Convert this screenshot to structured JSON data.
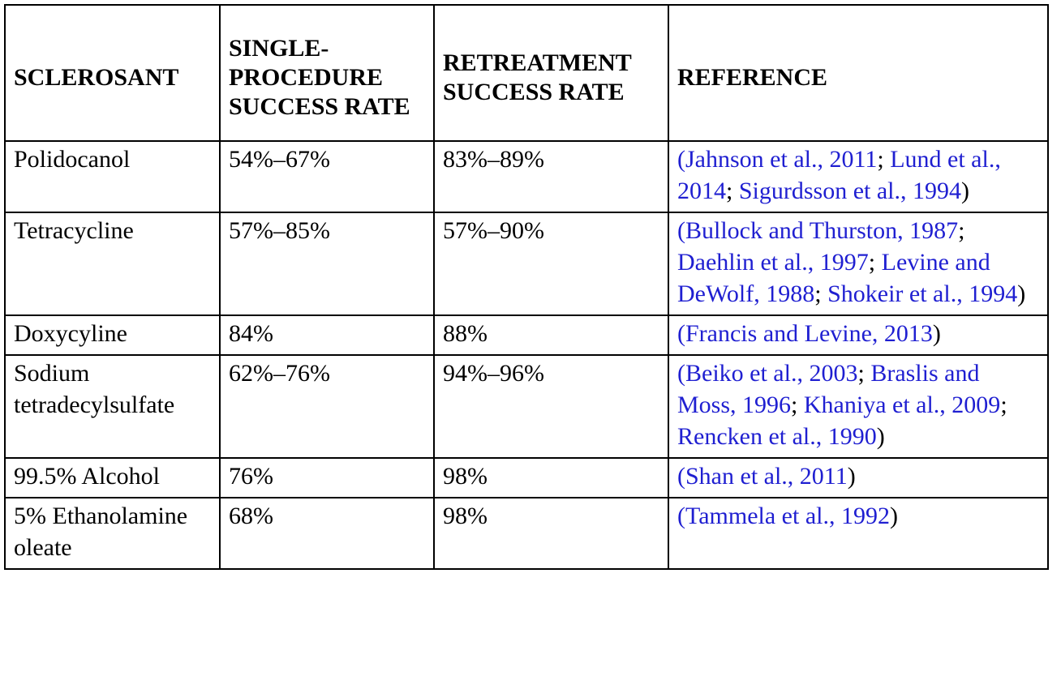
{
  "table": {
    "headers": [
      "SCLEROSANT",
      "SINGLE-PROCEDURE SUCCESS RATE",
      "RETREATMENT SUCCESS RATE",
      "REFERENCE"
    ],
    "rows": [
      {
        "sclerosant": "Polidocanol",
        "single": "54%–67%",
        "retreatment": "83%–89%",
        "references": [
          "Jahnson et al., 2011",
          "Lund et al., 2014",
          "Sigurdsson et al., 1994"
        ]
      },
      {
        "sclerosant": "Tetracycline",
        "single": "57%–85%",
        "retreatment": "57%–90%",
        "references": [
          "Bullock and Thurston, 1987",
          "Daehlin et al., 1997",
          "Levine and DeWolf, 1988",
          "Shokeir et al., 1994"
        ]
      },
      {
        "sclerosant": "Doxycyline",
        "single": "84%",
        "retreatment": "88%",
        "references": [
          "Francis and Levine, 2013"
        ]
      },
      {
        "sclerosant": "Sodium tetradecylsulfate",
        "single": "62%–76%",
        "retreatment": "94%–96%",
        "references": [
          "Beiko et al., 2003",
          "Braslis and Moss, 1996",
          "Khaniya et al., 2009",
          "Rencken et al., 1990"
        ]
      },
      {
        "sclerosant": "99.5% Alcohol",
        "single": "76%",
        "retreatment": "98%",
        "references": [
          "Shan et al., 2011"
        ]
      },
      {
        "sclerosant": "5% Ethanolamine oleate",
        "single": "68%",
        "retreatment": "98%",
        "references": [
          "Tammela et al., 1992"
        ]
      }
    ]
  },
  "punctuation": {
    "open": "(",
    "close": ")",
    "sep": "; "
  },
  "colors": {
    "link": "#1f1fd1",
    "text": "#000000",
    "border": "#000000"
  }
}
